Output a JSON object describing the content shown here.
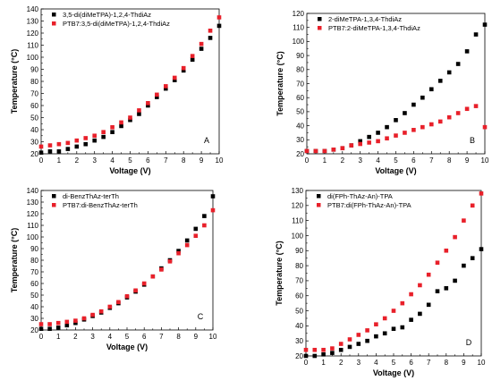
{
  "chart_data": [
    {
      "type": "scatter",
      "panel_label": "A",
      "xlabel": "Voltage (V)",
      "ylabel": "Temperature (°C)",
      "xlim": [
        0,
        10
      ],
      "ylim": [
        20,
        140
      ],
      "xticks": [
        0,
        1,
        2,
        3,
        4,
        5,
        6,
        7,
        8,
        9,
        10
      ],
      "yticks": [
        20,
        30,
        40,
        50,
        60,
        70,
        80,
        90,
        100,
        110,
        120,
        130,
        140
      ],
      "legend_position": "top-left",
      "series": [
        {
          "name": "3,5-di(diMeTPA)-1,2,4-ThdiAz",
          "color": "#000000",
          "points": [
            [
              0,
              21
            ],
            [
              0.5,
              22
            ],
            [
              1,
              22
            ],
            [
              1.5,
              24
            ],
            [
              2,
              26
            ],
            [
              2.5,
              28
            ],
            [
              3,
              31
            ],
            [
              3.5,
              34
            ],
            [
              4,
              38
            ],
            [
              4.5,
              43
            ],
            [
              5,
              48
            ],
            [
              5.5,
              53
            ],
            [
              6,
              60
            ],
            [
              6.5,
              67
            ],
            [
              7,
              74
            ],
            [
              7.5,
              81
            ],
            [
              8,
              89
            ],
            [
              8.5,
              98
            ],
            [
              9,
              107
            ],
            [
              9.5,
              116
            ],
            [
              10,
              126
            ]
          ]
        },
        {
          "name": "PTB7:3,5-di(diMeTPA)-1,2,4-ThdiAz",
          "color": "#e8202a",
          "points": [
            [
              0,
              26
            ],
            [
              0.5,
              27
            ],
            [
              1,
              28
            ],
            [
              1.5,
              29
            ],
            [
              2,
              31
            ],
            [
              2.5,
              33
            ],
            [
              3,
              35
            ],
            [
              3.5,
              38
            ],
            [
              4,
              42
            ],
            [
              4.5,
              46
            ],
            [
              5,
              50
            ],
            [
              5.5,
              56
            ],
            [
              6,
              62
            ],
            [
              6.5,
              69
            ],
            [
              7,
              76
            ],
            [
              7.5,
              83
            ],
            [
              8,
              91
            ],
            [
              8.5,
              101
            ],
            [
              9,
              111
            ],
            [
              9.5,
              122
            ],
            [
              10,
              133
            ]
          ]
        }
      ]
    },
    {
      "type": "scatter",
      "panel_label": "B",
      "xlabel": "Voltage (V)",
      "ylabel": "Temperature (°C)",
      "xlim": [
        0,
        10
      ],
      "ylim": [
        20,
        120
      ],
      "xticks": [
        0,
        1,
        2,
        3,
        4,
        5,
        6,
        7,
        8,
        9,
        10
      ],
      "yticks": [
        20,
        30,
        40,
        50,
        60,
        70,
        80,
        90,
        100,
        110,
        120
      ],
      "legend_position": "top-left",
      "series": [
        {
          "name": "2-diMeTPA-1,3,4-ThdiAz",
          "color": "#000000",
          "points": [
            [
              0,
              22
            ],
            [
              0.5,
              22
            ],
            [
              1,
              22
            ],
            [
              1.5,
              23
            ],
            [
              2,
              24
            ],
            [
              2.5,
              26
            ],
            [
              3,
              29
            ],
            [
              3.5,
              32
            ],
            [
              4,
              35
            ],
            [
              4.5,
              39
            ],
            [
              5,
              44
            ],
            [
              5.5,
              49
            ],
            [
              6,
              55
            ],
            [
              6.5,
              60
            ],
            [
              7,
              66
            ],
            [
              7.5,
              72
            ],
            [
              8,
              78
            ],
            [
              8.5,
              84
            ],
            [
              9,
              93
            ],
            [
              9.5,
              105
            ],
            [
              10,
              112
            ]
          ]
        },
        {
          "name": "PTB7:2-diMeTPA-1,3,4-ThdiAz",
          "color": "#e8202a",
          "points": [
            [
              0,
              22
            ],
            [
              0.5,
              22
            ],
            [
              1,
              22
            ],
            [
              1.5,
              23
            ],
            [
              2,
              24
            ],
            [
              2.5,
              26
            ],
            [
              3,
              27
            ],
            [
              3.5,
              28
            ],
            [
              4,
              29
            ],
            [
              4.5,
              31
            ],
            [
              5,
              33
            ],
            [
              5.5,
              35
            ],
            [
              6,
              37
            ],
            [
              6.5,
              39
            ],
            [
              7,
              41
            ],
            [
              7.5,
              43
            ],
            [
              8,
              46
            ],
            [
              8.5,
              49
            ],
            [
              9,
              52
            ],
            [
              9.5,
              54
            ],
            [
              10,
              39
            ]
          ]
        }
      ]
    },
    {
      "type": "scatter",
      "panel_label": "C",
      "xlabel": "Voltage (V)",
      "ylabel": "Temperature (°C)",
      "xlim": [
        0,
        10
      ],
      "ylim": [
        20,
        140
      ],
      "xticks": [
        0,
        1,
        2,
        3,
        4,
        5,
        6,
        7,
        8,
        9,
        10
      ],
      "yticks": [
        20,
        30,
        40,
        50,
        60,
        70,
        80,
        90,
        100,
        110,
        120,
        130,
        140
      ],
      "legend_position": "top-left",
      "series": [
        {
          "name": "di-BenzThAz-terTh",
          "color": "#000000",
          "points": [
            [
              0,
              21
            ],
            [
              0.5,
              21
            ],
            [
              1,
              22
            ],
            [
              1.5,
              24
            ],
            [
              2,
              26
            ],
            [
              2.5,
              29
            ],
            [
              3,
              32
            ],
            [
              3.5,
              35
            ],
            [
              4,
              39
            ],
            [
              4.5,
              43
            ],
            [
              5,
              48
            ],
            [
              5.5,
              53
            ],
            [
              6,
              59
            ],
            [
              6.5,
              66
            ],
            [
              7,
              73
            ],
            [
              7.5,
              80
            ],
            [
              8,
              88
            ],
            [
              8.5,
              97
            ],
            [
              9,
              107
            ],
            [
              9.5,
              118
            ],
            [
              10,
              135
            ]
          ]
        },
        {
          "name": "PTB7:di-BenzThAz-terTh",
          "color": "#e8202a",
          "points": [
            [
              0,
              25
            ],
            [
              0.5,
              25
            ],
            [
              1,
              26
            ],
            [
              1.5,
              27
            ],
            [
              2,
              28
            ],
            [
              2.5,
              30
            ],
            [
              3,
              33
            ],
            [
              3.5,
              36
            ],
            [
              4,
              40
            ],
            [
              4.5,
              44
            ],
            [
              5,
              49
            ],
            [
              5.5,
              54
            ],
            [
              6,
              60
            ],
            [
              6.5,
              66
            ],
            [
              7,
              72
            ],
            [
              7.5,
              79
            ],
            [
              8,
              86
            ],
            [
              8.5,
              93
            ],
            [
              9,
              101
            ],
            [
              9.5,
              110
            ],
            [
              10,
              123
            ]
          ]
        }
      ]
    },
    {
      "type": "scatter",
      "panel_label": "D",
      "xlabel": "Voltage (V)",
      "ylabel": "Temperature (°C)",
      "xlim": [
        0,
        10
      ],
      "ylim": [
        20,
        130
      ],
      "xticks": [
        0,
        1,
        2,
        3,
        4,
        5,
        6,
        7,
        8,
        9,
        10
      ],
      "yticks": [
        20,
        30,
        40,
        50,
        60,
        70,
        80,
        90,
        100,
        110,
        120,
        130
      ],
      "legend_position": "top-left",
      "series": [
        {
          "name": "di(FPh-ThAz-An)-TPA",
          "color": "#000000",
          "points": [
            [
              0,
              20
            ],
            [
              0.5,
              20
            ],
            [
              1,
              21
            ],
            [
              1.5,
              22
            ],
            [
              2,
              24
            ],
            [
              2.5,
              26
            ],
            [
              3,
              28
            ],
            [
              3.5,
              30
            ],
            [
              4,
              33
            ],
            [
              4.5,
              35
            ],
            [
              5,
              38
            ],
            [
              5.5,
              39
            ],
            [
              6,
              44
            ],
            [
              6.5,
              48
            ],
            [
              7,
              54
            ],
            [
              7.5,
              63
            ],
            [
              8,
              65
            ],
            [
              8.5,
              70
            ],
            [
              9,
              80
            ],
            [
              9.5,
              85
            ],
            [
              10,
              91
            ]
          ]
        },
        {
          "name": "PTB7:di(FPh-ThAz-An)-TPA",
          "color": "#e8202a",
          "points": [
            [
              0,
              24
            ],
            [
              0.5,
              24
            ],
            [
              1,
              24
            ],
            [
              1.5,
              25
            ],
            [
              2,
              28
            ],
            [
              2.5,
              31
            ],
            [
              3,
              34
            ],
            [
              3.5,
              37
            ],
            [
              4,
              41
            ],
            [
              4.5,
              45
            ],
            [
              5,
              50
            ],
            [
              5.5,
              55
            ],
            [
              6,
              61
            ],
            [
              6.5,
              67
            ],
            [
              7,
              74
            ],
            [
              7.5,
              82
            ],
            [
              8,
              90
            ],
            [
              8.5,
              99
            ],
            [
              9,
              110
            ],
            [
              9.5,
              120
            ],
            [
              10,
              128
            ]
          ]
        }
      ]
    }
  ]
}
